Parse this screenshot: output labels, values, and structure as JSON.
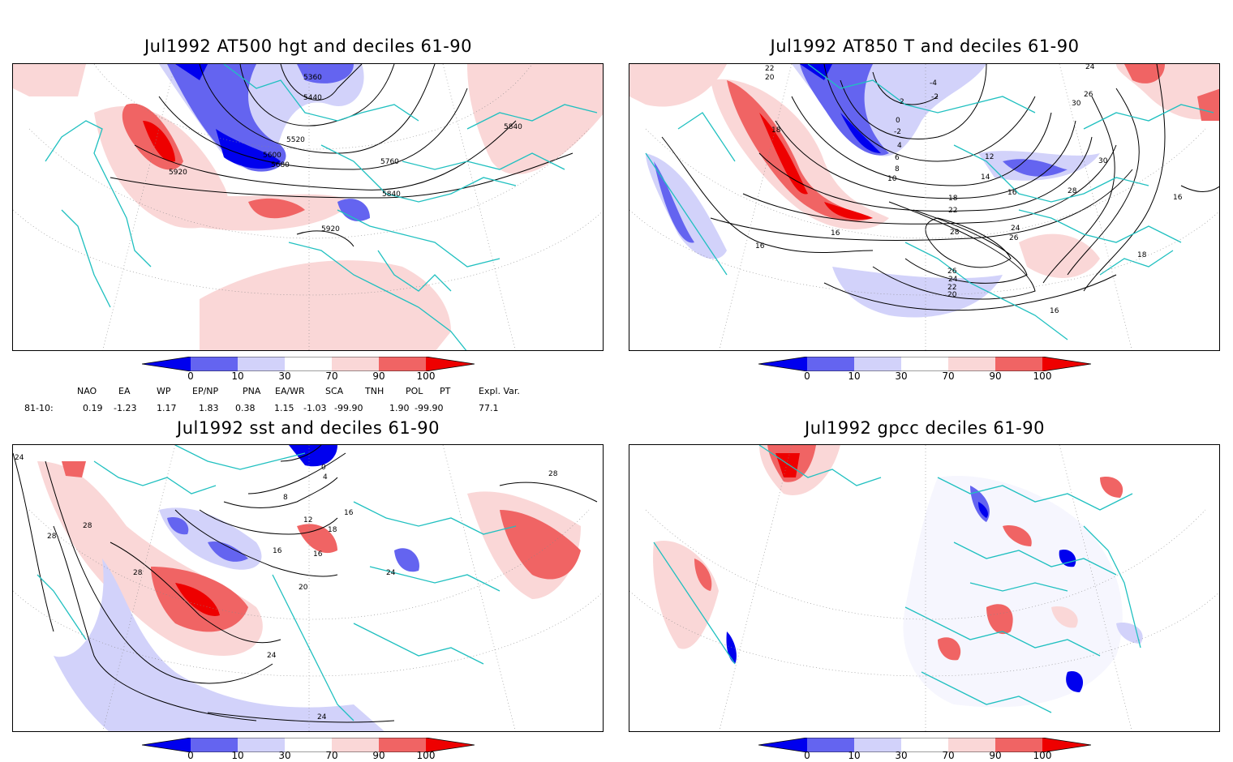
{
  "colors": {
    "dark_blue": "#0000ee",
    "mid_blue": "#6464f0",
    "light_blue": "#d2d2fa",
    "light_red": "#fad7d7",
    "mid_red": "#f06464",
    "dark_red": "#ee0000",
    "coast": "#20c0c0",
    "contour": "#000000"
  },
  "colorbar": {
    "labels": [
      "0",
      "10",
      "30",
      "70",
      "90",
      "100"
    ]
  },
  "panels": [
    {
      "title": "Jul1992 AT500 hgt and deciles 61-90",
      "contour_labels": [
        "5360",
        "5440",
        "5520",
        "5600",
        "5680",
        "5760",
        "5840",
        "5840",
        "5920",
        "5920"
      ]
    },
    {
      "title": "Jul1992 AT850 T and deciles 61-90",
      "contour_labels": [
        "22",
        "20",
        "-4",
        "-2",
        "2",
        "0",
        "-2",
        "4",
        "6",
        "8",
        "10",
        "12",
        "14",
        "16",
        "18",
        "18",
        "22",
        "24",
        "26",
        "28",
        "28",
        "30",
        "30",
        "24",
        "26",
        "16",
        "16",
        "16",
        "18",
        "16",
        "26",
        "24",
        "22",
        "20"
      ]
    },
    {
      "title": "Jul1992 sst and deciles 61-90",
      "contour_labels": [
        "24",
        "28",
        "28",
        "28",
        "28",
        "24",
        "20",
        "16",
        "16",
        "12",
        "8",
        "4",
        "0",
        "16",
        "18",
        "24",
        "24"
      ]
    },
    {
      "title": "Jul1992 gpcc deciles 61-90",
      "contour_labels": []
    }
  ],
  "indices": {
    "headers": [
      "NAO",
      "EA",
      "WP",
      "EP/NP",
      "PNA",
      "EA/WR",
      "SCA",
      "TNH",
      "POL",
      "PT",
      "Expl. Var."
    ],
    "row_label": "81-10:",
    "values": [
      "0.19",
      "-1.23",
      "1.17",
      "1.83",
      "0.38",
      "1.15",
      "-1.03",
      "-99.90",
      "1.90",
      "-99.90",
      "77.1"
    ]
  }
}
